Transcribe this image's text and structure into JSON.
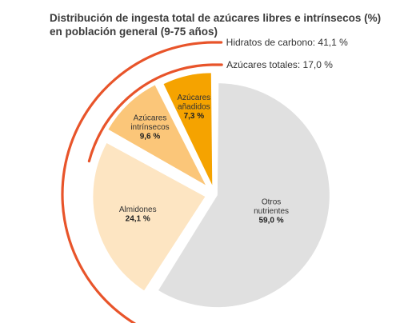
{
  "title": {
    "line1": "Distribución de ingesta total de azúcares libres e intrínsecos (%)",
    "line2": "en población general (9-75 años)"
  },
  "chart_data": {
    "type": "pie",
    "slices": [
      {
        "name": "Otros nutrientes",
        "label_lines": [
          "Otros",
          "nutrientes"
        ],
        "value": 59.0,
        "value_label": "59,0 %",
        "color": "#e0e0e0"
      },
      {
        "name": "Almidones",
        "label_lines": [
          "Almidones"
        ],
        "value": 24.1,
        "value_label": "24,1 %",
        "color": "#fde5c2"
      },
      {
        "name": "Azúcares intrínsecos",
        "label_lines": [
          "Azúcares",
          "intrínsecos"
        ],
        "value": 9.6,
        "value_label": "9,6 %",
        "color": "#fbc679"
      },
      {
        "name": "Azúcares añadidos",
        "label_lines": [
          "Azúcares",
          "añadidos"
        ],
        "value": 7.3,
        "value_label": "7,3 %",
        "color": "#f5a300"
      }
    ],
    "groups": [
      {
        "label": "Hidratos de carbono: 41,1 %",
        "value": 41.1,
        "color": "#e8542a"
      },
      {
        "label": "Azúcares totales: 17,0 %",
        "value": 17.0,
        "color": "#e8542a"
      }
    ]
  }
}
